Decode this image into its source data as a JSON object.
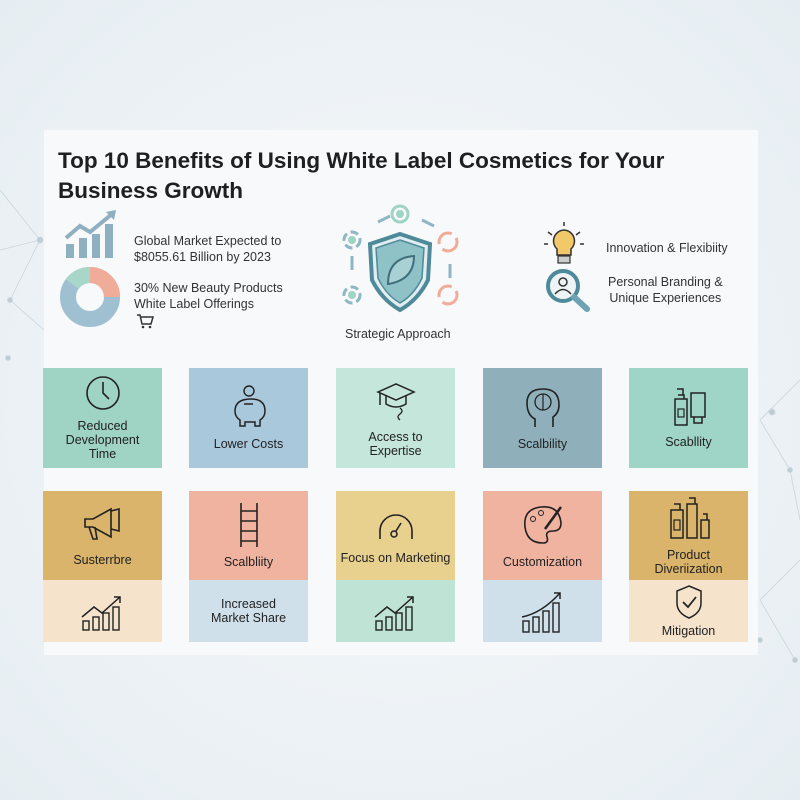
{
  "title": "Top 10 Benefits of Using White Label Cosmetics for Your Business Growth",
  "stats": [
    {
      "icon": "bar-chart-growth-icon",
      "text_line1": "Global Market Expected to",
      "text_line2": "$8055.61 Billion by 2023"
    },
    {
      "icon": "donut-chart-icon",
      "text_line1": "30% New Beauty Products",
      "text_line2": "White Label Offerings",
      "extra_icon": "shopping-cart-icon"
    }
  ],
  "center": {
    "icon": "shield-leaf-cycle-icon",
    "label": "Strategic Approach"
  },
  "right": [
    {
      "icon": "lightbulb-icon",
      "text_line1": "Innovation & Flexibiity"
    },
    {
      "icon": "magnifier-person-icon",
      "text_line1": "Personal Branding &",
      "text_line2": "Unique Experiences"
    }
  ],
  "row1": [
    {
      "label": "Reduced Development Time",
      "icon": "clock-icon",
      "color": "#9fd3c4"
    },
    {
      "label": "Lower Costs",
      "icon": "piggy-bank-icon",
      "color": "#a9c8dc"
    },
    {
      "label": "Access to Expertise",
      "icon": "graduation-cap-icon",
      "color": "#c5e6da"
    },
    {
      "label": "Scalbility",
      "icon": "brain-head-icon",
      "color": "#8fb0bb"
    },
    {
      "label": "Scabllity",
      "icon": "cosmetic-bottles-icon",
      "color": "#9fd5c6"
    }
  ],
  "row2": [
    {
      "label": "Susterrbre",
      "icon": "megaphone-icon",
      "color": "#d9b46a",
      "bottom_icon": "growth-chart-icon",
      "bottom_color": "#f5e3cc"
    },
    {
      "label": "Scalbliity",
      "icon": "ladder-icon",
      "color": "#f0b3a0",
      "bottom_label": "Increased Market Share",
      "bottom_color": "#cfe0ea"
    },
    {
      "label": "Focus on Marketing",
      "icon": "speedometer-icon",
      "color": "#e8d08f",
      "bottom_icon": "growth-chart-icon",
      "bottom_color": "#bfe4d6"
    },
    {
      "label": "Customization",
      "icon": "palette-icon",
      "color": "#f0b3a0",
      "bottom_icon": "growth-chart-icon",
      "bottom_color": "#cfe0ea"
    },
    {
      "label": "Product Diveriization",
      "icon": "product-bottles-icon",
      "color": "#d9b46a",
      "bottom_label": "Mitigation",
      "bottom_icon": "shield-check-icon",
      "bottom_color": "#f5e3cc"
    }
  ]
}
